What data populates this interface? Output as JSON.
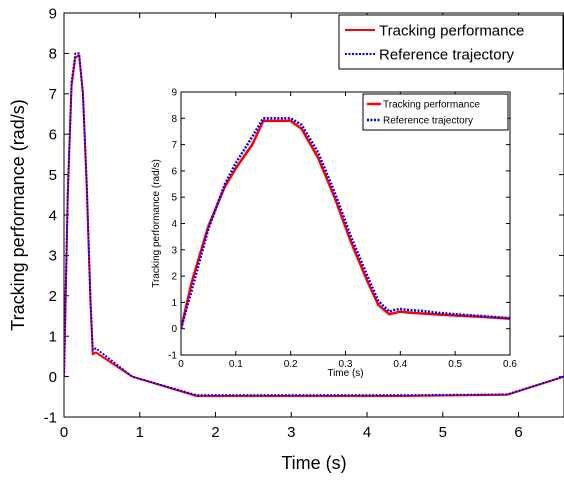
{
  "chart_data": [
    {
      "type": "line",
      "xlabel": "Time (s)",
      "ylabel": "Tracking performance (rad/s)",
      "xlim": [
        0,
        6.6
      ],
      "ylim": [
        -1,
        9
      ],
      "xticks": [
        "0",
        "1",
        "2",
        "3",
        "4",
        "5",
        "6"
      ],
      "yticks": [
        "-1",
        "0",
        "1",
        "2",
        "3",
        "4",
        "5",
        "6",
        "7",
        "8",
        "9"
      ],
      "legend": "top-right",
      "grid": false,
      "series": [
        {
          "name": "Tracking performance",
          "color": "#ff0000",
          "style": "solid",
          "x": [
            0,
            0.05,
            0.1,
            0.15,
            0.2,
            0.25,
            0.3,
            0.35,
            0.38,
            0.42,
            0.9,
            1.75,
            3.0,
            4.5,
            5.85,
            6.6
          ],
          "y": [
            0,
            4.5,
            7.2,
            7.9,
            7.95,
            7.0,
            4.7,
            1.8,
            0.55,
            0.6,
            0.0,
            -0.48,
            -0.48,
            -0.48,
            -0.45,
            0.0
          ]
        },
        {
          "name": "Reference trajectory",
          "color": "#0000ff",
          "style": "dotted",
          "x": [
            0,
            0.05,
            0.1,
            0.15,
            0.2,
            0.25,
            0.3,
            0.35,
            0.38,
            0.42,
            0.9,
            1.75,
            3.0,
            4.5,
            5.85,
            6.6
          ],
          "y": [
            0,
            4.6,
            7.3,
            8.0,
            8.0,
            7.0,
            4.8,
            1.9,
            0.65,
            0.7,
            0.0,
            -0.46,
            -0.46,
            -0.46,
            -0.44,
            0.0
          ]
        }
      ]
    },
    {
      "type": "line",
      "xlabel": "Time (s)",
      "ylabel": "Tracking performance (rad/s)",
      "xlim": [
        0,
        0.6
      ],
      "ylim": [
        -1,
        9
      ],
      "xticks": [
        "0",
        "0.1",
        "0.2",
        "0.3",
        "0.4",
        "0.5",
        "0.6"
      ],
      "yticks": [
        "-1",
        "0",
        "1",
        "2",
        "3",
        "4",
        "5",
        "6",
        "7",
        "8",
        "9"
      ],
      "legend": "top-right",
      "grid": false,
      "series": [
        {
          "name": "Tracking performance",
          "color": "#ff0000",
          "style": "solid",
          "x": [
            0,
            0.02,
            0.05,
            0.08,
            0.1,
            0.13,
            0.15,
            0.2,
            0.22,
            0.25,
            0.28,
            0.31,
            0.34,
            0.36,
            0.38,
            0.39,
            0.4,
            0.42,
            0.44,
            0.46,
            0.5,
            0.55,
            0.6
          ],
          "y": [
            0,
            1.8,
            3.9,
            5.4,
            6.1,
            7.0,
            7.9,
            7.9,
            7.6,
            6.5,
            5.0,
            3.3,
            1.8,
            0.9,
            0.55,
            0.6,
            0.65,
            0.6,
            0.58,
            0.55,
            0.5,
            0.45,
            0.38
          ]
        },
        {
          "name": "Reference trajectory",
          "color": "#0000ff",
          "style": "dotted",
          "x": [
            0,
            0.02,
            0.05,
            0.08,
            0.1,
            0.13,
            0.15,
            0.2,
            0.22,
            0.25,
            0.28,
            0.31,
            0.34,
            0.36,
            0.38,
            0.39,
            0.4,
            0.42,
            0.44,
            0.46,
            0.5,
            0.55,
            0.6
          ],
          "y": [
            0,
            1.5,
            3.8,
            5.5,
            6.3,
            7.3,
            8.0,
            8.0,
            7.75,
            6.7,
            5.2,
            3.5,
            2.0,
            1.05,
            0.65,
            0.72,
            0.75,
            0.7,
            0.68,
            0.62,
            0.55,
            0.48,
            0.4
          ]
        }
      ]
    }
  ]
}
